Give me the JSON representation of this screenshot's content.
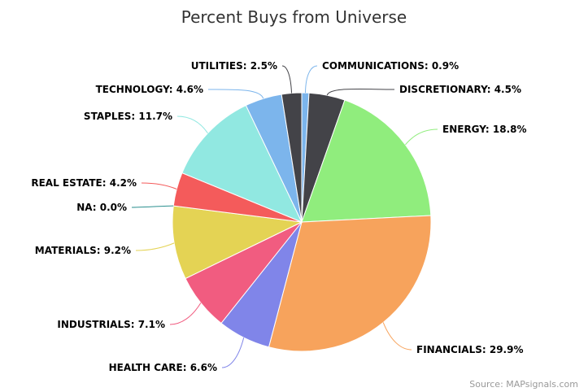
{
  "chart_data": {
    "type": "pie",
    "title": "Percent Buys from Universe",
    "credit": "Source: MAPsignals.com",
    "slices": [
      {
        "label": "COMMUNICATIONS: 0.9%",
        "value": 0.9,
        "color": "#7cb5ec"
      },
      {
        "label": "DISCRETIONARY: 4.5%",
        "value": 4.5,
        "color": "#434348"
      },
      {
        "label": "ENERGY: 18.8%",
        "value": 18.8,
        "color": "#90ed7d"
      },
      {
        "label": "FINANCIALS: 29.9%",
        "value": 29.9,
        "color": "#f7a35c"
      },
      {
        "label": "HEALTH CARE: 6.6%",
        "value": 6.6,
        "color": "#8085e9"
      },
      {
        "label": "INDUSTRIALS: 7.1%",
        "value": 7.1,
        "color": "#f15c80"
      },
      {
        "label": "MATERIALS: 9.2%",
        "value": 9.2,
        "color": "#e4d354"
      },
      {
        "label": "NA: 0.0%",
        "value": 0.0,
        "color": "#2b908f"
      },
      {
        "label": "REAL ESTATE: 4.2%",
        "value": 4.2,
        "color": "#f45b5b"
      },
      {
        "label": "STAPLES: 11.7%",
        "value": 11.7,
        "color": "#91e8e1"
      },
      {
        "label": "TECHNOLOGY: 4.6%",
        "value": 4.6,
        "color": "#7cb5ec"
      },
      {
        "label": "UTILITIES: 2.5%",
        "value": 2.5,
        "color": "#434348"
      }
    ]
  }
}
